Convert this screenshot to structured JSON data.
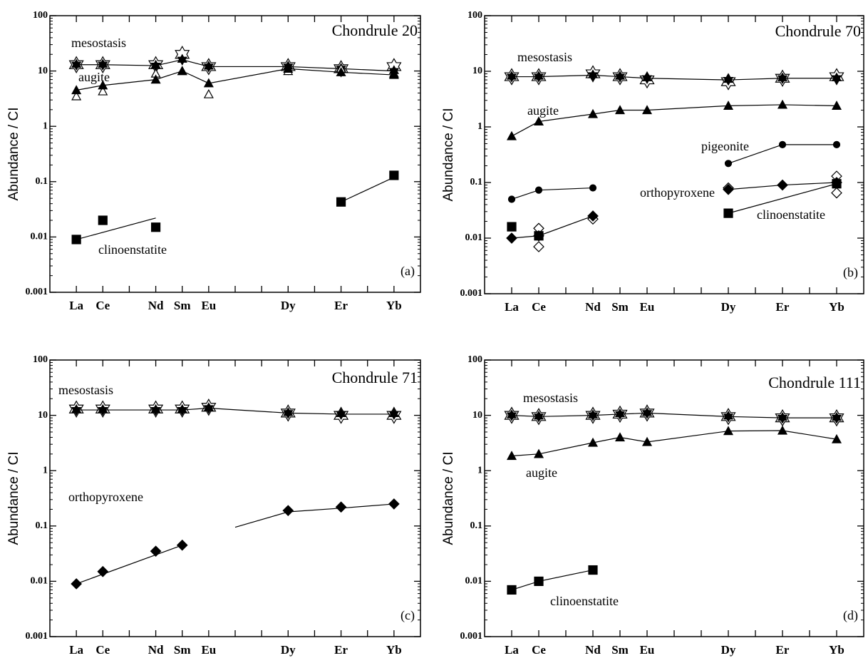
{
  "chart_data": [
    {
      "type": "line",
      "title": "Chondrule 20",
      "panel_label": "(a)",
      "ylabel": "Abundance / CI",
      "log_y": true,
      "ylim": [
        0.001,
        100
      ],
      "yticks": [
        0.001,
        0.01,
        0.1,
        1,
        10,
        100
      ],
      "xlim": [
        0,
        14
      ],
      "xticks": [
        {
          "value": 1,
          "label": "La"
        },
        {
          "value": 2,
          "label": "Ce"
        },
        {
          "value": 4,
          "label": "Nd"
        },
        {
          "value": 5,
          "label": "Sm"
        },
        {
          "value": 6,
          "label": "Eu"
        },
        {
          "value": 9,
          "label": "Dy"
        },
        {
          "value": 11,
          "label": "Er"
        },
        {
          "value": 13,
          "label": "Yb"
        }
      ],
      "x_minor_ticks": [
        3,
        7,
        8,
        10,
        12
      ],
      "annotations": [
        "mesostasis",
        "augite",
        "clinoenstatite"
      ],
      "series": [
        {
          "marker": "star-open",
          "color": "#000000",
          "line": false,
          "x": [
            1,
            2,
            4,
            5,
            6,
            9,
            11,
            13
          ],
          "values": [
            13,
            13,
            13,
            20,
            12,
            12,
            11,
            12
          ]
        },
        {
          "marker": "star-filled",
          "color": "#000000",
          "line": true,
          "x": [
            1,
            2,
            4,
            5,
            6,
            9,
            11,
            13
          ],
          "values": [
            13,
            13,
            12.5,
            16,
            12,
            12,
            11,
            10
          ]
        },
        {
          "marker": "triangle-open",
          "color": "#000000",
          "line": false,
          "x": [
            1,
            2,
            4,
            5,
            6,
            9,
            11,
            13
          ],
          "values": [
            3.5,
            4.3,
            9,
            10,
            3.8,
            10,
            11,
            9
          ]
        },
        {
          "marker": "triangle",
          "color": "#000000",
          "line": true,
          "x": [
            1,
            2,
            4,
            5,
            6,
            9,
            11,
            13
          ],
          "values": [
            4.5,
            5.5,
            7,
            10,
            6,
            11,
            9.5,
            8.5
          ]
        },
        {
          "marker": "square",
          "color": "#000000",
          "line": false,
          "x": [
            1,
            2,
            4,
            11,
            13
          ],
          "values": [
            0.009,
            0.02,
            0.015,
            0.043,
            0.13
          ]
        },
        {
          "marker": "none",
          "color": "#000000",
          "line": true,
          "x": [
            1,
            4
          ],
          "values": [
            0.009,
            0.022
          ]
        },
        {
          "marker": "none",
          "color": "#000000",
          "line": true,
          "x": [
            11,
            13
          ],
          "values": [
            0.043,
            0.12
          ]
        }
      ]
    },
    {
      "type": "line",
      "title": "Chondrule 70",
      "panel_label": "(b)",
      "ylabel": "Abundance / CI",
      "log_y": true,
      "ylim": [
        0.001,
        100
      ],
      "yticks": [
        0.001,
        0.01,
        0.1,
        1,
        10,
        100
      ],
      "xlim": [
        0,
        14
      ],
      "xticks": [
        {
          "value": 1,
          "label": "La"
        },
        {
          "value": 2,
          "label": "Ce"
        },
        {
          "value": 4,
          "label": "Nd"
        },
        {
          "value": 5,
          "label": "Sm"
        },
        {
          "value": 6,
          "label": "Eu"
        },
        {
          "value": 9,
          "label": "Dy"
        },
        {
          "value": 11,
          "label": "Er"
        },
        {
          "value": 13,
          "label": "Yb"
        }
      ],
      "x_minor_ticks": [
        3,
        7,
        8,
        10,
        12
      ],
      "annotations": [
        "mesostasis",
        "augite",
        "pigeonite",
        "orthopyroxene",
        "clinoenstatite"
      ],
      "series": [
        {
          "marker": "star-open",
          "color": "#000000",
          "line": false,
          "x": [
            1,
            2,
            4,
            5,
            6,
            9,
            11,
            13
          ],
          "values": [
            8,
            8,
            9,
            8,
            7,
            6.5,
            7.5,
            8
          ]
        },
        {
          "marker": "star-filled",
          "color": "#000000",
          "line": true,
          "x": [
            1,
            2,
            4,
            5,
            6,
            9,
            11,
            13
          ],
          "values": [
            8,
            8,
            8.5,
            8,
            7.5,
            7,
            7.5,
            7.5
          ]
        },
        {
          "marker": "triangle",
          "color": "#000000",
          "line": true,
          "x": [
            1,
            2,
            4,
            5,
            6,
            9,
            11,
            13
          ],
          "values": [
            0.68,
            1.25,
            1.7,
            2,
            2,
            2.4,
            2.5,
            2.4
          ]
        },
        {
          "marker": "circle",
          "color": "#000000",
          "line": true,
          "x": [
            1,
            2,
            4
          ],
          "values": [
            0.05,
            0.073,
            0.08
          ]
        },
        {
          "marker": "circle",
          "color": "#000000",
          "line": true,
          "x": [
            9,
            11,
            13
          ],
          "values": [
            0.22,
            0.48,
            0.48
          ]
        },
        {
          "marker": "diamond-open",
          "color": "#000000",
          "line": false,
          "x": [
            2,
            2,
            4,
            9,
            13,
            13
          ],
          "values": [
            0.015,
            0.007,
            0.022,
            0.08,
            0.13,
            0.065
          ]
        },
        {
          "marker": "diamond",
          "color": "#000000",
          "line": true,
          "x": [
            1,
            2,
            4
          ],
          "values": [
            0.01,
            0.011,
            0.025
          ]
        },
        {
          "marker": "diamond",
          "color": "#000000",
          "line": true,
          "x": [
            9,
            11,
            13
          ],
          "values": [
            0.075,
            0.09,
            0.1
          ]
        },
        {
          "marker": "square",
          "color": "#000000",
          "line": false,
          "x": [
            1,
            2
          ],
          "values": [
            0.016,
            0.011
          ]
        },
        {
          "marker": "square",
          "color": "#000000",
          "line": true,
          "x": [
            9,
            13
          ],
          "values": [
            0.028,
            0.095
          ]
        }
      ]
    },
    {
      "type": "line",
      "title": "Chondrule 71",
      "panel_label": "(c)",
      "ylabel": "Abundance / CI",
      "log_y": true,
      "ylim": [
        0.001,
        100
      ],
      "yticks": [
        0.001,
        0.01,
        0.1,
        1,
        10,
        100
      ],
      "xlim": [
        0,
        14
      ],
      "xticks": [
        {
          "value": 1,
          "label": "La"
        },
        {
          "value": 2,
          "label": "Ce"
        },
        {
          "value": 4,
          "label": "Nd"
        },
        {
          "value": 5,
          "label": "Sm"
        },
        {
          "value": 6,
          "label": "Eu"
        },
        {
          "value": 9,
          "label": "Dy"
        },
        {
          "value": 11,
          "label": "Er"
        },
        {
          "value": 13,
          "label": "Yb"
        }
      ],
      "x_minor_ticks": [
        3,
        7,
        8,
        10,
        12
      ],
      "annotations": [
        "mesostasis",
        "orthopyroxene"
      ],
      "series": [
        {
          "marker": "star-open",
          "color": "#000000",
          "line": false,
          "x": [
            1,
            2,
            4,
            5,
            6,
            9,
            11,
            13
          ],
          "values": [
            13,
            13,
            13,
            13,
            14,
            11,
            10,
            10
          ]
        },
        {
          "marker": "star-filled",
          "color": "#000000",
          "line": true,
          "x": [
            1,
            2,
            4,
            5,
            6,
            9,
            11,
            13
          ],
          "values": [
            12.5,
            12.5,
            12.5,
            12.5,
            13.5,
            11,
            10.5,
            10.5
          ]
        },
        {
          "marker": "diamond",
          "color": "#000000",
          "line": false,
          "x": [
            1,
            2,
            4,
            5,
            9,
            11,
            13
          ],
          "values": [
            0.009,
            0.015,
            0.035,
            0.045,
            0.19,
            0.22,
            0.25
          ]
        },
        {
          "marker": "none",
          "color": "#000000",
          "line": true,
          "x": [
            1,
            5
          ],
          "values": [
            0.009,
            0.045
          ]
        },
        {
          "marker": "none",
          "color": "#000000",
          "line": true,
          "x": [
            7,
            9,
            11,
            13
          ],
          "values": [
            0.095,
            0.18,
            0.21,
            0.25
          ]
        }
      ]
    },
    {
      "type": "line",
      "title": "Chondrule 111",
      "panel_label": "(d)",
      "ylabel": "Abundance / CI",
      "log_y": true,
      "ylim": [
        0.001,
        100
      ],
      "yticks": [
        0.001,
        0.01,
        0.1,
        1,
        10,
        100
      ],
      "xlim": [
        0,
        14
      ],
      "xticks": [
        {
          "value": 1,
          "label": "La"
        },
        {
          "value": 2,
          "label": "Ce"
        },
        {
          "value": 4,
          "label": "Nd"
        },
        {
          "value": 5,
          "label": "Sm"
        },
        {
          "value": 6,
          "label": "Eu"
        },
        {
          "value": 9,
          "label": "Dy"
        },
        {
          "value": 11,
          "label": "Er"
        },
        {
          "value": 13,
          "label": "Yb"
        }
      ],
      "x_minor_ticks": [
        3,
        7,
        8,
        10,
        12
      ],
      "annotations": [
        "mesostasis",
        "augite",
        "clinoenstatite"
      ],
      "series": [
        {
          "marker": "star-open",
          "color": "#000000",
          "line": false,
          "x": [
            1,
            2,
            4,
            5,
            6,
            9,
            11,
            13
          ],
          "values": [
            10,
            9.5,
            10,
            10.5,
            11,
            9.5,
            9,
            9
          ]
        },
        {
          "marker": "star-filled",
          "color": "#000000",
          "line": true,
          "x": [
            1,
            2,
            4,
            5,
            6,
            9,
            11,
            13
          ],
          "values": [
            10,
            9.5,
            10,
            10.5,
            11,
            9.5,
            9,
            9
          ]
        },
        {
          "marker": "triangle",
          "color": "#000000",
          "line": true,
          "x": [
            1,
            2,
            4,
            5,
            6,
            9,
            11,
            13
          ],
          "values": [
            1.85,
            2,
            3.2,
            4,
            3.3,
            5.2,
            5.3,
            3.7
          ]
        },
        {
          "marker": "square",
          "color": "#000000",
          "line": true,
          "x": [
            1,
            2,
            4
          ],
          "values": [
            0.007,
            0.01,
            0.016
          ]
        }
      ]
    }
  ]
}
